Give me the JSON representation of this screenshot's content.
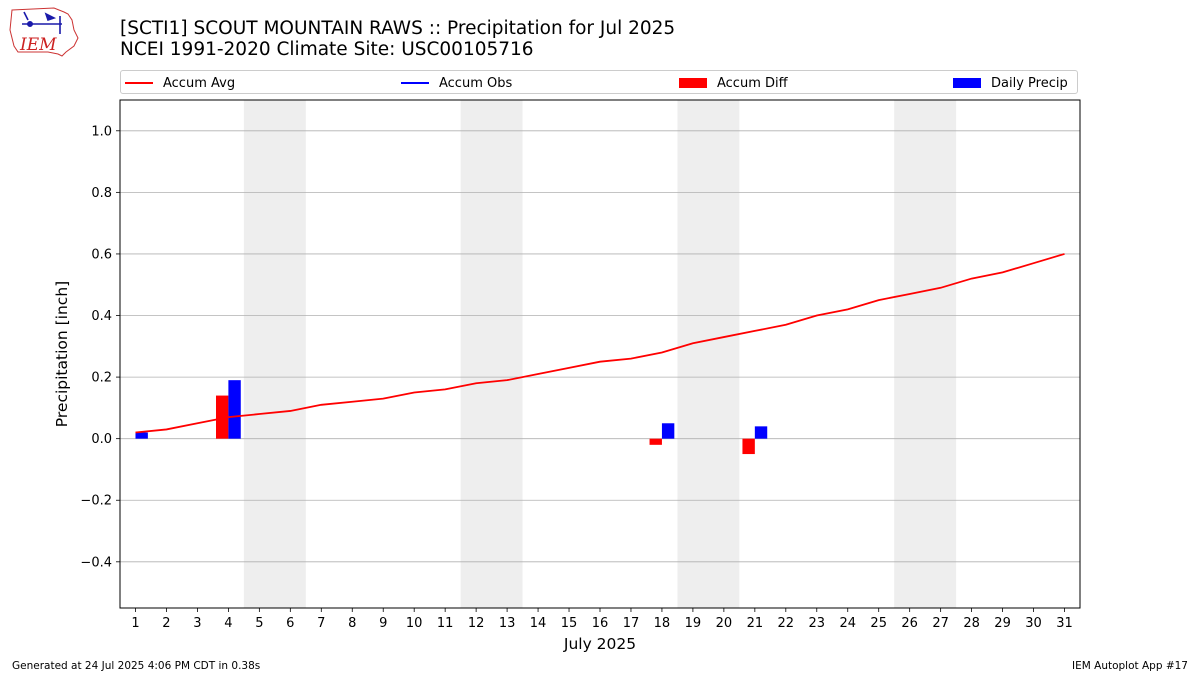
{
  "header": {
    "logo_text": "IEM",
    "title_line1": "[SCTI1] SCOUT MOUNTAIN RAWS :: Precipitation for Jul 2025",
    "title_line2": "NCEI 1991-2020 Climate Site: USC00105716"
  },
  "legend": {
    "accum_avg": "Accum Avg",
    "accum_obs": "Accum Obs",
    "accum_diff": "Accum Diff",
    "daily_precip": "Daily Precip"
  },
  "colors": {
    "accum_avg": "#ff0000",
    "accum_obs": "#0000ff",
    "accum_diff": "#ff0000",
    "daily_precip": "#0000ff",
    "weekend_shade": "#eeeeee",
    "grid": "#b0b0b0"
  },
  "footer": {
    "generated": "Generated at 24 Jul 2025 4:06 PM CDT in 0.38s",
    "app": "IEM Autoplot App #17"
  },
  "chart_data": {
    "type": "bar",
    "title": "[SCTI1] SCOUT MOUNTAIN RAWS :: Precipitation for Jul 2025",
    "xlabel": "July 2025",
    "ylabel": "Precipitation [inch]",
    "x": [
      1,
      2,
      3,
      4,
      5,
      6,
      7,
      8,
      9,
      10,
      11,
      12,
      13,
      14,
      15,
      16,
      17,
      18,
      19,
      20,
      21,
      22,
      23,
      24,
      25,
      26,
      27,
      28,
      29,
      30,
      31
    ],
    "xlim": [
      0.5,
      31.5
    ],
    "ylim": [
      -0.55,
      1.1
    ],
    "yticks": [
      -0.4,
      -0.2,
      0.0,
      0.2,
      0.4,
      0.6,
      0.8,
      1.0
    ],
    "ytick_labels": [
      "−0.4",
      "−0.2",
      "0.0",
      "0.2",
      "0.4",
      "0.6",
      "0.8",
      "1.0"
    ],
    "grid": "horizontal",
    "legend_position": "top",
    "weekend_shading": [
      [
        4.5,
        6.5
      ],
      [
        11.5,
        13.5
      ],
      [
        18.5,
        20.5
      ],
      [
        25.5,
        27.5
      ]
    ],
    "series": [
      {
        "name": "Accum Avg",
        "kind": "line",
        "x": [
          1,
          2,
          3,
          4,
          5,
          6,
          7,
          8,
          9,
          10,
          11,
          12,
          13,
          14,
          15,
          16,
          17,
          18,
          19,
          20,
          21,
          22,
          23,
          24,
          25,
          26,
          27,
          28,
          29,
          30,
          31
        ],
        "values": [
          0.02,
          0.03,
          0.05,
          0.07,
          0.08,
          0.09,
          0.11,
          0.12,
          0.13,
          0.15,
          0.16,
          0.18,
          0.19,
          0.21,
          0.23,
          0.25,
          0.26,
          0.28,
          0.31,
          0.33,
          0.35,
          0.37,
          0.4,
          0.42,
          0.45,
          0.47,
          0.49,
          0.52,
          0.54,
          0.57,
          0.6
        ]
      },
      {
        "name": "Accum Obs",
        "kind": "line",
        "x": [],
        "values": []
      },
      {
        "name": "Accum Diff",
        "kind": "bar",
        "x": [
          4,
          18,
          21
        ],
        "values": [
          0.14,
          -0.02,
          -0.05
        ]
      },
      {
        "name": "Daily Precip",
        "kind": "bar",
        "x": [
          1,
          4,
          18,
          21
        ],
        "values": [
          0.02,
          0.19,
          0.05,
          0.04
        ]
      }
    ]
  }
}
